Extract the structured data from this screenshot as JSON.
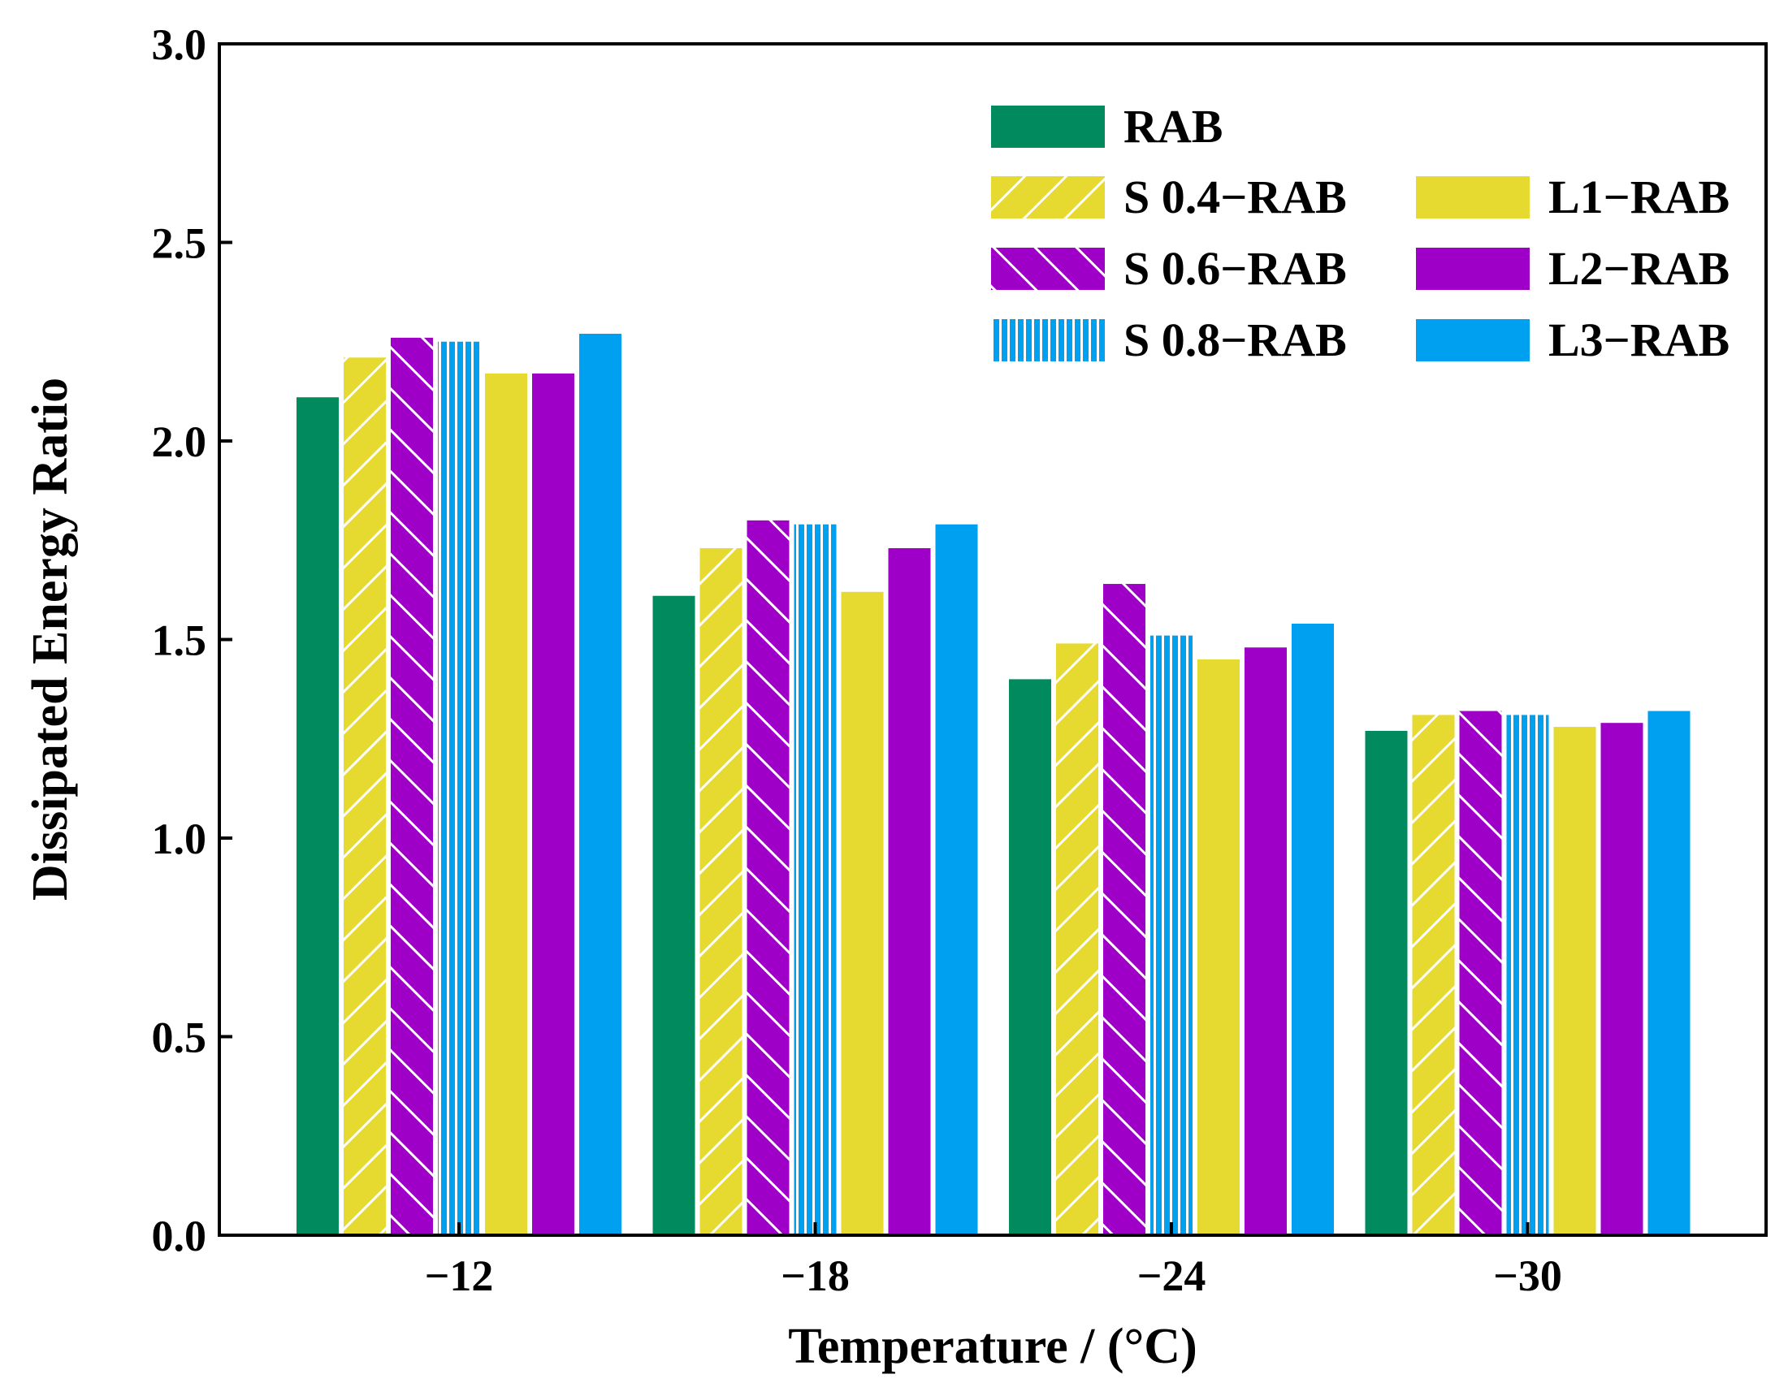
{
  "chart_data": {
    "type": "bar",
    "title": "",
    "xlabel": "Temperature / (°C)",
    "ylabel": "Dissipated Energy Ratio",
    "ylim": [
      0,
      3.0
    ],
    "yticks": [
      "0.0",
      "0.5",
      "1.0",
      "1.5",
      "2.0",
      "2.5",
      "3.0"
    ],
    "categories": [
      "−12",
      "−18",
      "−24",
      "−30"
    ],
    "grid": false,
    "legend_position": "top-right",
    "series": [
      {
        "name": "RAB",
        "pattern": "solid",
        "color": "#008a5e",
        "values": [
          2.11,
          1.61,
          1.4,
          1.27
        ]
      },
      {
        "name": "S 0.4−RAB",
        "pattern": "diag-right",
        "color": "#e6d930",
        "values": [
          2.21,
          1.73,
          1.49,
          1.31
        ]
      },
      {
        "name": "S 0.6−RAB",
        "pattern": "diag-left",
        "color": "#9e00c8",
        "values": [
          2.26,
          1.8,
          1.64,
          1.32
        ]
      },
      {
        "name": "S 0.8−RAB",
        "pattern": "vertical",
        "color": "#00a0f0",
        "values": [
          2.25,
          1.79,
          1.51,
          1.31
        ]
      },
      {
        "name": "L1−RAB",
        "pattern": "solid",
        "color": "#e6d930",
        "values": [
          2.17,
          1.62,
          1.45,
          1.28
        ]
      },
      {
        "name": "L2−RAB",
        "pattern": "solid",
        "color": "#9e00c8",
        "values": [
          2.17,
          1.73,
          1.48,
          1.29
        ]
      },
      {
        "name": "L3−RAB",
        "pattern": "solid",
        "color": "#00a0f0",
        "values": [
          2.27,
          1.79,
          1.54,
          1.32
        ]
      }
    ]
  }
}
